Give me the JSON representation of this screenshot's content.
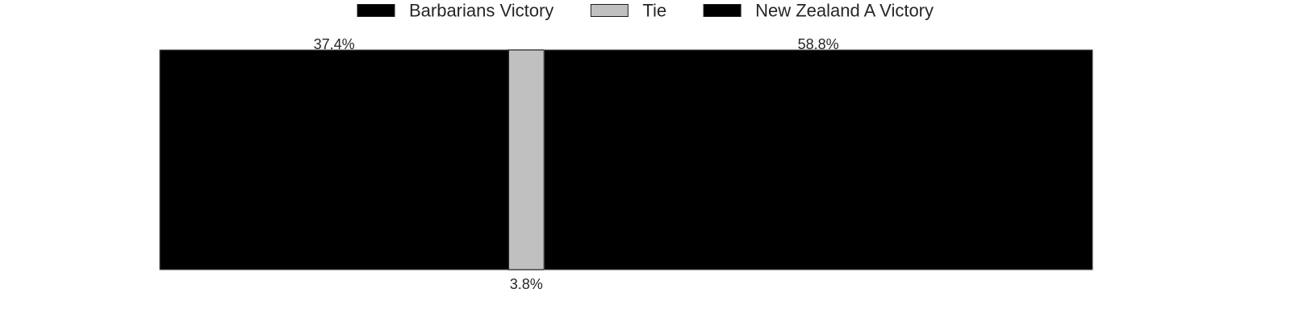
{
  "chart_data": {
    "type": "bar",
    "orientation": "horizontal",
    "stacked": true,
    "normalized": true,
    "title": "",
    "xlabel": "",
    "ylabel": "",
    "xlim": [
      0,
      100
    ],
    "grid": false,
    "legend_position": "top-center",
    "categories": [
      ""
    ],
    "series": [
      {
        "name": "Barbarians Victory",
        "values": [
          37.4
        ],
        "label": "37.4%",
        "label_position": "top",
        "color": "#000000"
      },
      {
        "name": "Tie",
        "values": [
          3.8
        ],
        "label": "3.8%",
        "label_position": "bottom",
        "color": "#c0c0c0"
      },
      {
        "name": "New Zealand A Victory",
        "values": [
          58.8
        ],
        "label": "58.8%",
        "label_position": "top",
        "color": "#000000"
      }
    ]
  }
}
